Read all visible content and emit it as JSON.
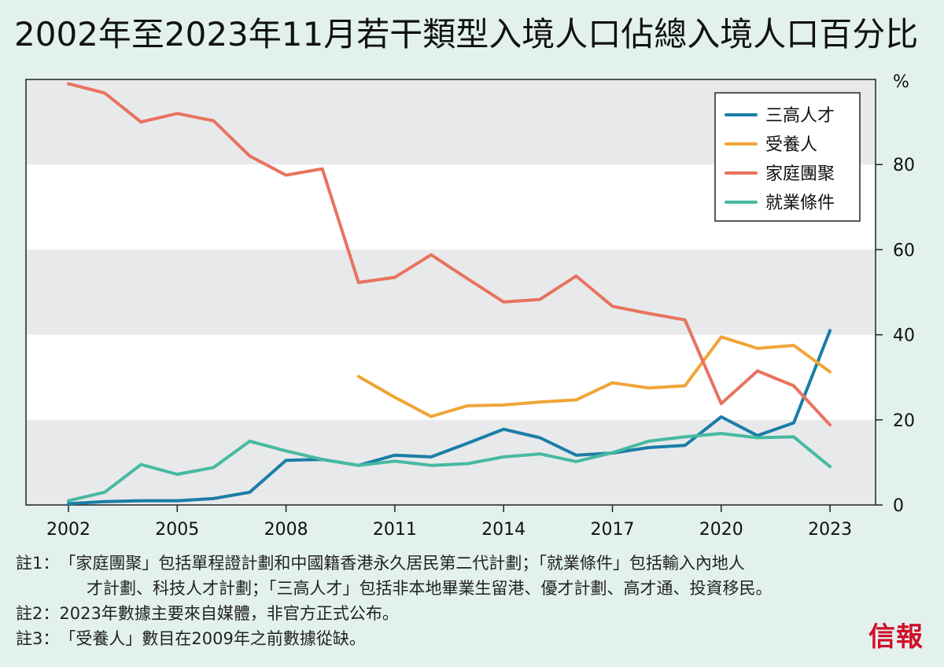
{
  "title": "2002年至2023年11月若干類型入境人口佔總入境人口百分比",
  "chart_data": {
    "type": "line",
    "ylabel": "%",
    "xlim": [
      2002,
      2023
    ],
    "ylim": [
      0,
      100
    ],
    "x_ticks": [
      "2002",
      "2005",
      "2008",
      "2011",
      "2014",
      "2017",
      "2020",
      "2023"
    ],
    "y_ticks": [
      "0",
      "20",
      "40",
      "60",
      "80"
    ],
    "grid_bands": true,
    "legend_position": "top-right",
    "x": [
      2002,
      2003,
      2004,
      2005,
      2006,
      2007,
      2008,
      2009,
      2010,
      2011,
      2012,
      2013,
      2014,
      2015,
      2016,
      2017,
      2018,
      2019,
      2020,
      2021,
      2022,
      2023
    ],
    "series": [
      {
        "name": "三高人才",
        "color": "#1a7ea6",
        "values": [
          0.3,
          0.8,
          1.0,
          1.0,
          1.5,
          3.0,
          10.5,
          10.7,
          9.3,
          11.7,
          11.3,
          14.5,
          17.8,
          15.8,
          11.7,
          12.2,
          13.5,
          14.0,
          20.7,
          16.3,
          19.3,
          41.0
        ]
      },
      {
        "name": "受養人",
        "color": "#f0a536",
        "values": [
          null,
          null,
          null,
          null,
          null,
          null,
          null,
          null,
          30.2,
          25.3,
          20.8,
          23.3,
          23.5,
          24.2,
          24.7,
          28.7,
          27.5,
          28.0,
          39.5,
          36.8,
          37.5,
          31.3
        ]
      },
      {
        "name": "家庭團聚",
        "color": "#e8735f",
        "values": [
          99.0,
          96.8,
          90.0,
          92.0,
          90.3,
          82.0,
          77.5,
          79.0,
          52.3,
          53.5,
          58.8,
          53.2,
          47.7,
          48.3,
          53.8,
          46.7,
          45.0,
          43.5,
          23.8,
          31.5,
          28.0,
          18.8
        ]
      },
      {
        "name": "就業條件",
        "color": "#47b9a2",
        "values": [
          1.0,
          3.0,
          9.5,
          7.2,
          8.8,
          15.0,
          12.7,
          10.7,
          9.3,
          10.3,
          9.3,
          9.7,
          11.3,
          12.0,
          10.2,
          12.3,
          15.0,
          16.0,
          16.8,
          15.8,
          16.0,
          9.0
        ]
      }
    ]
  },
  "notes": [
    {
      "key": "註1：",
      "text": "「家庭團聚」包括單程證計劃和中國籍香港永久居民第二代計劃；「就業條件」包括輸入內地人",
      "cont": "才計劃、科技人才計劃；「三高人才」包括非本地畢業生留港、優才計劃、高才通、投資移民。"
    },
    {
      "key": "註2：",
      "text": "2023年數據主要來自媒體，非官方正式公布。"
    },
    {
      "key": "註3：",
      "text": "「受養人」數目在2009年之前數據從缺。"
    }
  ],
  "logo_text": "信報"
}
